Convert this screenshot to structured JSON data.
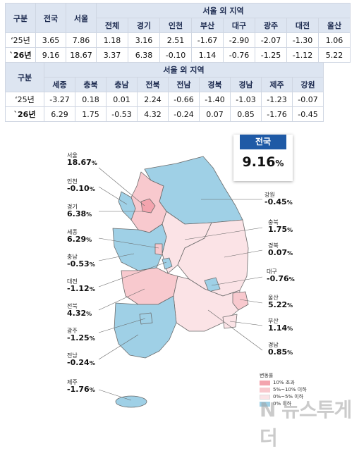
{
  "table1": {
    "header_gubun": "구분",
    "header_nation": "전국",
    "header_seoul": "서울",
    "header_outside": "서울 외 지역",
    "regions": [
      "전체",
      "경기",
      "인천",
      "부산",
      "대구",
      "광주",
      "대전",
      "울산"
    ],
    "rows": [
      {
        "label": "‘25년",
        "nation": "3.65",
        "seoul": "7.86",
        "vals": [
          "1.18",
          "3.16",
          "2.51",
          "-1.67",
          "-2.90",
          "-2.07",
          "-1.30",
          "1.06"
        ]
      },
      {
        "label": "`26년",
        "nation": "9.16",
        "seoul": "18.67",
        "vals": [
          "3.37",
          "6.38",
          "-0.10",
          "1.14",
          "-0.76",
          "-1.25",
          "-1.12",
          "5.22"
        ]
      }
    ]
  },
  "table2": {
    "header_gubun": "구분",
    "header_outside": "서울 외 지역",
    "regions": [
      "세종",
      "충북",
      "충남",
      "전북",
      "전남",
      "경북",
      "경남",
      "제주",
      "강원"
    ],
    "rows": [
      {
        "label": "‘25년",
        "vals": [
          "-3.27",
          "0.18",
          "0.01",
          "2.24",
          "-0.66",
          "-1.40",
          "-1.03",
          "-1.23",
          "-0.07"
        ]
      },
      {
        "label": "`26년",
        "vals": [
          "6.29",
          "1.75",
          "-0.53",
          "4.32",
          "-0.24",
          "0.07",
          "0.85",
          "-1.76",
          "-0.45"
        ]
      }
    ]
  },
  "national": {
    "label": "전국",
    "value": "9.16",
    "unit": "%"
  },
  "callouts_left": [
    {
      "id": "seoul",
      "name": "서울",
      "value": "18.67"
    },
    {
      "id": "incheon",
      "name": "인천",
      "value": "-0.10"
    },
    {
      "id": "gyeonggi",
      "name": "경기",
      "value": "6.38"
    },
    {
      "id": "sejong",
      "name": "세종",
      "value": "6.29"
    },
    {
      "id": "chungnam",
      "name": "충남",
      "value": "-0.53"
    },
    {
      "id": "daejeon",
      "name": "대전",
      "value": "-1.12"
    },
    {
      "id": "jeonbuk",
      "name": "전북",
      "value": "4.32"
    },
    {
      "id": "gwangju",
      "name": "광주",
      "value": "-1.25"
    },
    {
      "id": "jeonnam",
      "name": "전남",
      "value": "-0.24"
    },
    {
      "id": "jeju",
      "name": "제주",
      "value": "-1.76"
    }
  ],
  "callouts_right": [
    {
      "id": "gangwon",
      "name": "강원",
      "value": "-0.45"
    },
    {
      "id": "chungbuk",
      "name": "충북",
      "value": "1.75"
    },
    {
      "id": "gyeongbuk",
      "name": "경북",
      "value": "0.07"
    },
    {
      "id": "daegu",
      "name": "대구",
      "value": "-0.76"
    },
    {
      "id": "ulsan",
      "name": "울산",
      "value": "5.22"
    },
    {
      "id": "busan",
      "name": "부산",
      "value": "1.14"
    },
    {
      "id": "gyeongnam",
      "name": "경남",
      "value": "0.85"
    }
  ],
  "unit": "%",
  "legend": {
    "title": "변동률",
    "items": [
      {
        "label": "10% 초과",
        "color": "#f3a4ae"
      },
      {
        "label": "5%~10% 이하",
        "color": "#f8c9ce"
      },
      {
        "label": "0%~5% 이하",
        "color": "#fbe3e6"
      },
      {
        "label": "0% 이하",
        "color": "#9fd0e6"
      }
    ]
  },
  "watermark": "N 뉴스투게더",
  "colors": {
    "header_bg": "#dde5f1",
    "pink_strong": "#f3a4ae",
    "pink_mid": "#f8c9ce",
    "pink_light": "#fbe3e6",
    "blue": "#9fd0e6",
    "nation_bar": "#1f5aa6",
    "outline": "#5a5a5a"
  }
}
